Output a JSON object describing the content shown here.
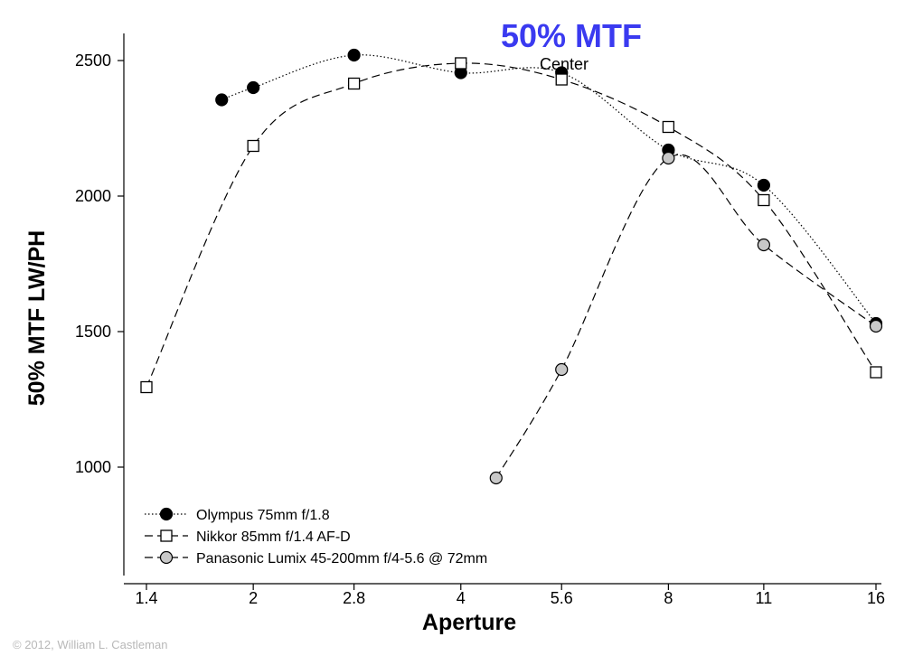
{
  "chart_data": {
    "type": "line",
    "title": "50% MTF",
    "subtitle": "Center",
    "xlabel": "Aperture",
    "ylabel": "50% MTF LW/PH",
    "x_scale": "log",
    "xlim": [
      1.4,
      16
    ],
    "ylim": [
      600,
      2600
    ],
    "x_ticks": [
      1.4,
      2,
      2.8,
      4,
      5.6,
      8,
      11,
      16
    ],
    "x_tick_labels": [
      "1.4",
      "2",
      "2.8",
      "4",
      "5.6",
      "8",
      "11",
      "16"
    ],
    "y_ticks": [
      1000,
      1500,
      2000,
      2500
    ],
    "y_tick_labels": [
      "1000",
      "1500",
      "2000",
      "2500"
    ],
    "grid": false,
    "legend_position": "bottom-left",
    "series": [
      {
        "name": "Olympus 75mm f/1.8",
        "marker": "filled-circle",
        "line": "dotted",
        "color": "#000000",
        "fill": "#000000",
        "x": [
          1.8,
          2.0,
          2.8,
          4.0,
          5.6,
          8.0,
          11.0,
          16.0
        ],
        "y": [
          2355,
          2400,
          2520,
          2455,
          2455,
          2170,
          2040,
          1530
        ]
      },
      {
        "name": "Nikkor 85mm f/1.4 AF-D",
        "marker": "open-square",
        "line": "dashed",
        "color": "#000000",
        "fill": "#ffffff",
        "x": [
          1.4,
          2.0,
          2.8,
          4.0,
          5.6,
          8.0,
          11.0,
          16.0
        ],
        "y": [
          1295,
          2185,
          2415,
          2490,
          2430,
          2255,
          1985,
          1350
        ]
      },
      {
        "name": "Panasonic Lumix 45-200mm f/4-5.6 @ 72mm",
        "marker": "gray-circle",
        "line": "dashed",
        "color": "#000000",
        "fill": "#c8c8c8",
        "x": [
          4.5,
          5.6,
          8.0,
          11.0,
          16.0
        ],
        "y": [
          960,
          1360,
          2140,
          1820,
          1520
        ]
      }
    ]
  },
  "copyright": "© 2012, William L. Castleman",
  "colors": {
    "title": "#3a3af0",
    "axis": "#000000",
    "panasonic_fill": "#c8c8c8"
  }
}
